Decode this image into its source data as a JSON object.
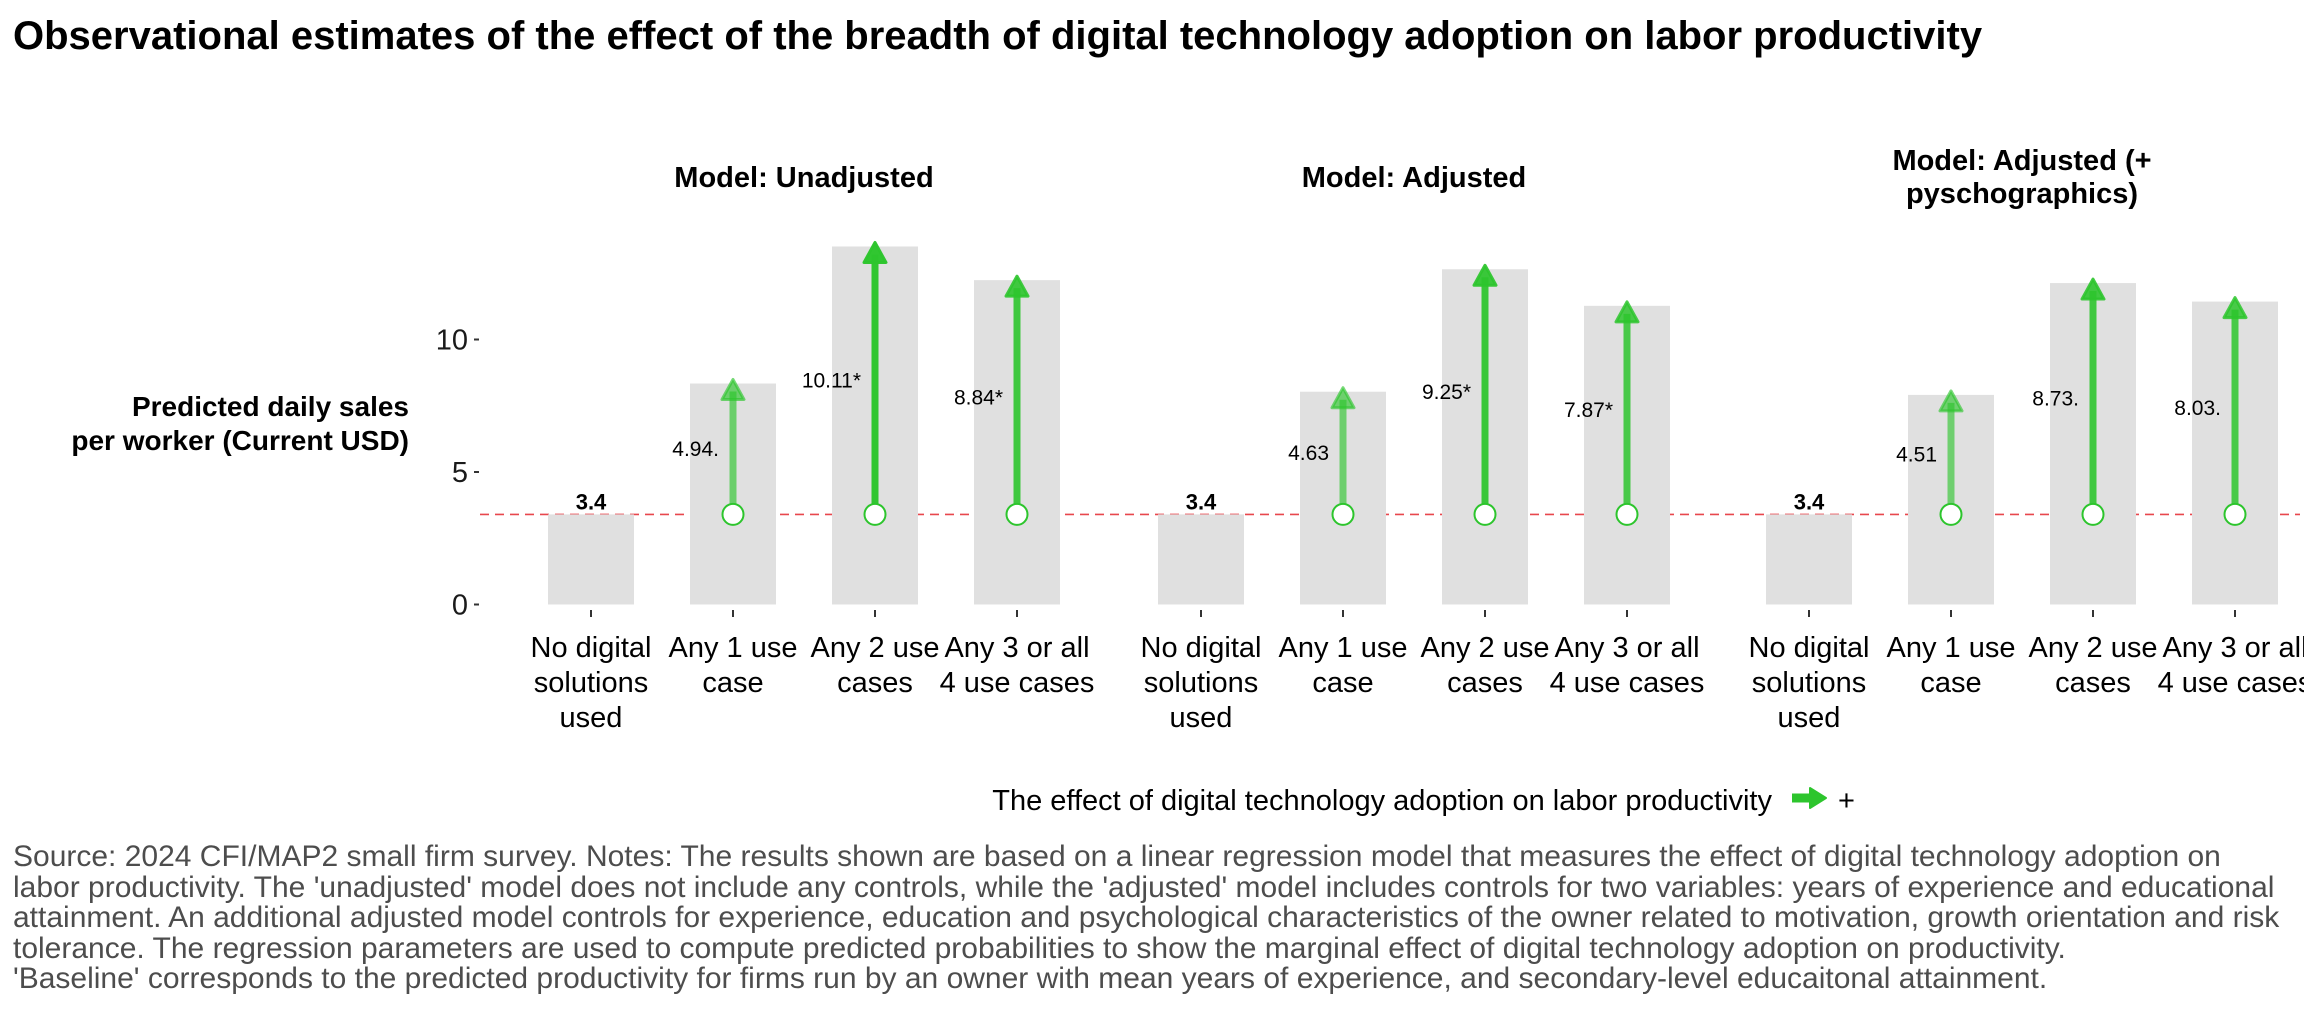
{
  "title": "Observational estimates of the effect of the breadth of digital technology adoption on labor productivity",
  "chart_data": {
    "type": "bar",
    "ylabel": [
      "Predicted daily sales",
      "per worker (Current USD)"
    ],
    "ylim": [
      0,
      13.3
    ],
    "yticks": [
      0,
      5,
      10
    ],
    "baseline": 3.4,
    "baseline_label": "3.4",
    "categories": [
      [
        "No digital",
        "solutions",
        "used"
      ],
      [
        "Any 1 use",
        "case"
      ],
      [
        "Any 2 use",
        "cases"
      ],
      [
        "Any 3 or all",
        "4 use cases"
      ]
    ],
    "panels": [
      {
        "title": [
          "Model: Unadjusted"
        ],
        "values": [
          3.4,
          8.34,
          13.51,
          12.24
        ],
        "effects": [
          null,
          4.94,
          10.11,
          8.84
        ],
        "effect_labels": [
          "",
          "4.94.",
          "10.11*",
          "8.84*"
        ]
      },
      {
        "title": [
          "Model: Adjusted"
        ],
        "values": [
          3.4,
          8.03,
          12.65,
          11.27
        ],
        "effects": [
          null,
          4.63,
          9.25,
          7.87
        ],
        "effect_labels": [
          "",
          "4.63",
          "9.25*",
          "7.87*"
        ]
      },
      {
        "title": [
          "Model: Adjusted (+",
          "pyschographics)"
        ],
        "values": [
          3.4,
          7.91,
          12.13,
          11.43
        ],
        "effects": [
          null,
          4.51,
          8.73,
          8.03
        ],
        "effect_labels": [
          "",
          "4.51",
          "8.73.",
          "8.03."
        ]
      }
    ],
    "legend": {
      "title": "The effect of digital technology adoption on labor productivity",
      "items": [
        "+"
      ]
    },
    "colors": {
      "bar": "#e0e0e0",
      "arrow": "#2dc52d",
      "baseline_line": "#e8474d"
    }
  },
  "caption": [
    "Source: 2024 CFI/MAP2 small firm survey. Notes: The results shown are based on a linear regression model that measures the effect of digital technology adoption on",
    "labor productivity. The 'unadjusted' model does not include any controls, while the 'adjusted' model includes controls for two variables: years of experience and educational",
    "attainment. An additional adjusted model controls for experience, education and psychological characteristics of the owner related to motivation, growth orientation and risk",
    "tolerance. The regression parameters are used to compute predicted probabilities to show the marginal effect of digital technology adoption on productivity.",
    "'Baseline' corresponds to the predicted productivity for firms run by an owner with mean years of experience, and secondary-level educaitonal attainment."
  ]
}
